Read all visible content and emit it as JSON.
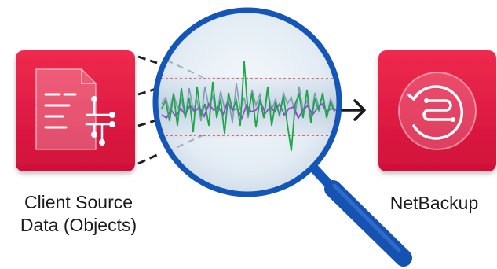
{
  "client_source": {
    "label_line1": "Client Source",
    "label_line2": "Data (Objects)",
    "icon": "data-document-icon",
    "color": "#e0143f"
  },
  "netbackup": {
    "label": "NetBackup",
    "icon": "restore-backup-icon",
    "color": "#e0143f"
  },
  "magnifier": {
    "icon": "magnifying-glass-icon",
    "rim_color": "#1456b8",
    "signal_colors": [
      "#1fa64a",
      "#9b3ee0",
      "#7f9cb5"
    ],
    "threshold_color": "#d2232a"
  },
  "flow_arrow_icon": "right-arrow-icon"
}
